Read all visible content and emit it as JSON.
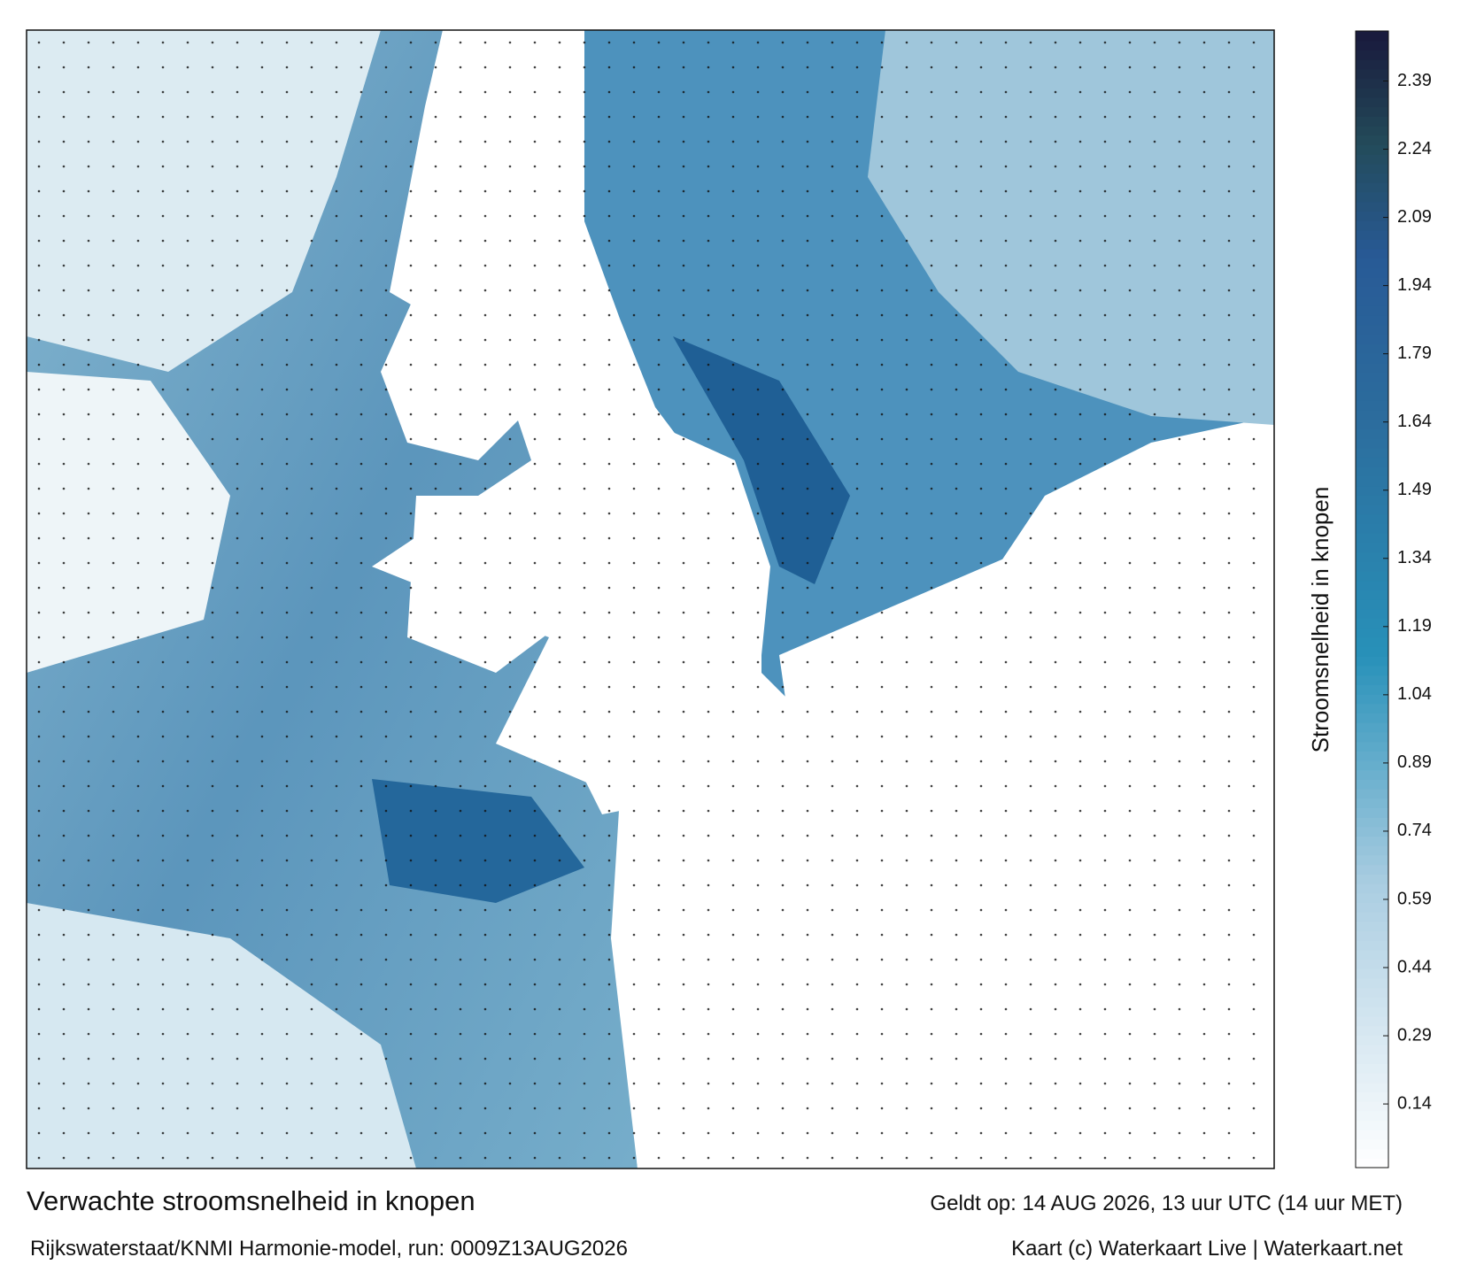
{
  "map": {
    "colorbar": {
      "label": "Stroomsnelheid in knopen",
      "range": [
        0,
        2.5
      ],
      "ticks": [
        0.14,
        0.29,
        0.44,
        0.59,
        0.74,
        0.89,
        1.04,
        1.19,
        1.34,
        1.49,
        1.64,
        1.79,
        1.94,
        2.09,
        2.24,
        2.39
      ]
    }
  },
  "footer": {
    "title": "Verwachte stroomsnelheid in knopen",
    "valid": "Geldt op: 14 AUG 2026, 13 uur UTC (14 uur MET)",
    "source": "Rijkswaterstaat/KNMI Harmonie-model, run: 0009Z13AUG2026",
    "credit": "Kaart (c) Waterkaart Live | Waterkaart.net"
  }
}
